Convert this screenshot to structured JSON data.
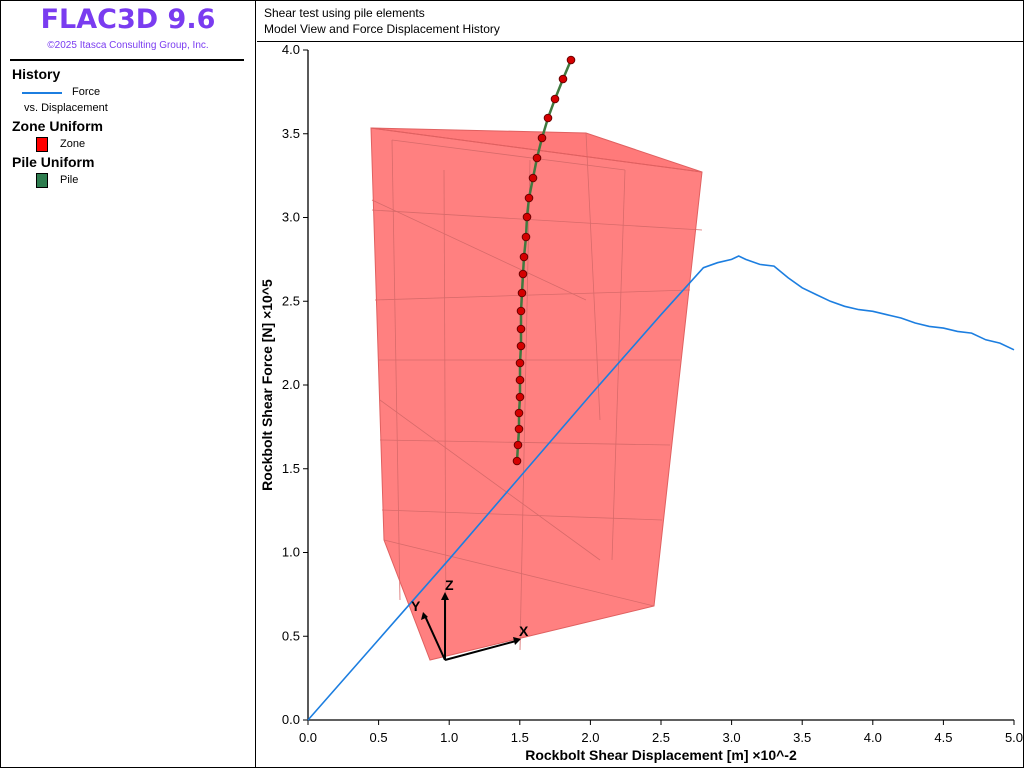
{
  "app": {
    "title": "FLAC3D 9.6",
    "copyright": "©2025 Itasca Consulting Group, Inc."
  },
  "legend": {
    "history": {
      "heading": "History",
      "item": "Force",
      "subitem": "vs. Displacement",
      "color": "#1c7ee0"
    },
    "zone": {
      "heading": "Zone Uniform",
      "item": "Zone",
      "color": "#ff0000"
    },
    "pile": {
      "heading": "Pile Uniform",
      "item": "Pile",
      "color": "#2e7d4f"
    }
  },
  "view": {
    "line1": "Shear test using pile elements",
    "line2": "Model View and Force Displacement History"
  },
  "axes3d": {
    "x": "X",
    "y": "Y",
    "z": "Z"
  },
  "chart_data": {
    "type": "line",
    "xlabel": "Rockbolt Shear Displacement [m]  ×10^-2",
    "ylabel": "Rockbolt Shear Force [N]  ×10^5",
    "xlim": [
      0,
      5
    ],
    "ylim": [
      0,
      4
    ],
    "xticks": [
      "0.0",
      "0.5",
      "1.0",
      "1.5",
      "2.0",
      "2.5",
      "3.0",
      "3.5",
      "4.0",
      "4.5",
      "5.0"
    ],
    "yticks": [
      "0.0",
      "0.5",
      "1.0",
      "1.5",
      "2.0",
      "2.5",
      "3.0",
      "3.5",
      "4.0"
    ],
    "grid": false,
    "series": [
      {
        "name": "Force",
        "color": "#1c7ee0",
        "x": [
          0.0,
          0.5,
          1.0,
          1.5,
          2.0,
          2.5,
          2.8,
          2.9,
          3.0,
          3.05,
          3.1,
          3.2,
          3.3,
          3.4,
          3.5,
          3.6,
          3.7,
          3.8,
          3.9,
          4.0,
          4.1,
          4.2,
          4.3,
          4.4,
          4.5,
          4.6,
          4.7,
          4.8,
          4.9,
          5.0
        ],
        "y": [
          0.0,
          0.48,
          0.96,
          1.45,
          1.94,
          2.42,
          2.7,
          2.73,
          2.75,
          2.77,
          2.75,
          2.72,
          2.71,
          2.64,
          2.58,
          2.54,
          2.5,
          2.47,
          2.45,
          2.44,
          2.42,
          2.4,
          2.37,
          2.35,
          2.34,
          2.32,
          2.31,
          2.27,
          2.25,
          2.21
        ]
      }
    ]
  }
}
